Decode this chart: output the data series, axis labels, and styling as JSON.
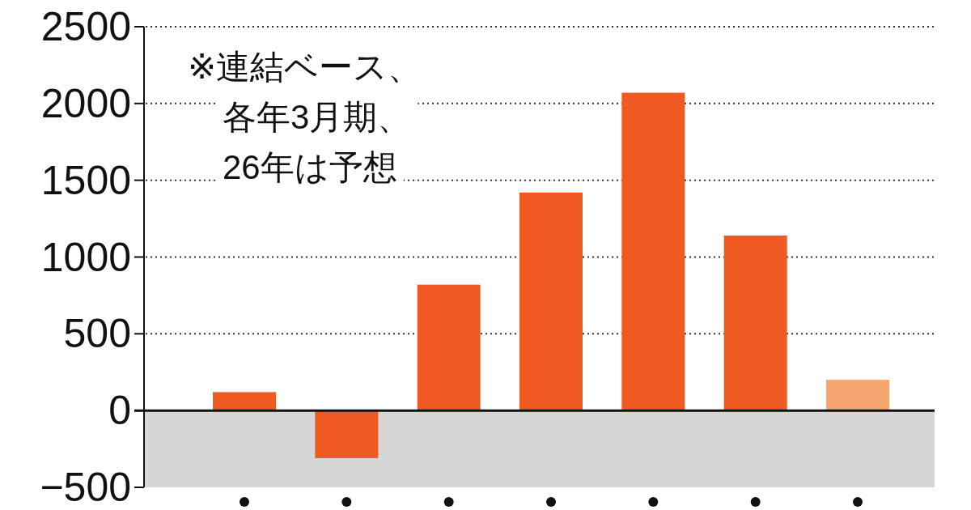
{
  "chart_data": {
    "type": "bar",
    "categories": [
      null,
      null,
      null,
      null,
      null,
      null,
      null
    ],
    "values": [
      120,
      -310,
      820,
      1420,
      2070,
      1140,
      200
    ],
    "colors": [
      "#f05a22",
      "#f05a22",
      "#f05a22",
      "#f05a22",
      "#f05a22",
      "#f05a22",
      "#f5a66e"
    ],
    "ylim": [
      -500,
      2500
    ],
    "yticks": [
      -500,
      0,
      500,
      1000,
      1500,
      2000,
      2500
    ],
    "grid": "y",
    "bands": [
      {
        "axis": "y",
        "from": -500,
        "to": 0,
        "color": "#d6d6d6"
      }
    ],
    "annotations": [
      "※連結ベース、",
      "各年3月期、",
      "26年は予想"
    ]
  }
}
